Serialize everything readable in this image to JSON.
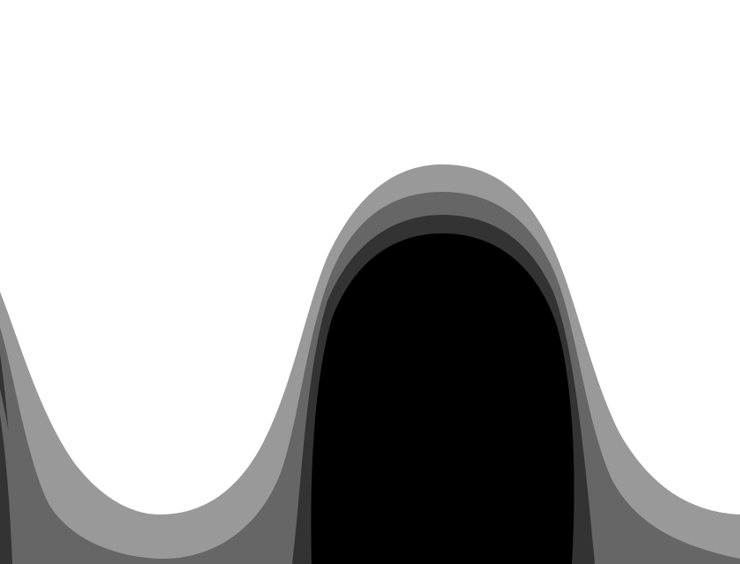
{
  "scene": {
    "background": "#ffffff",
    "bands": [
      {
        "name": "outer-band",
        "color": "#999999"
      },
      {
        "name": "mid-band",
        "color": "#666666"
      },
      {
        "name": "inner-band",
        "color": "#333333"
      },
      {
        "name": "core",
        "color": "#000000"
      }
    ]
  }
}
